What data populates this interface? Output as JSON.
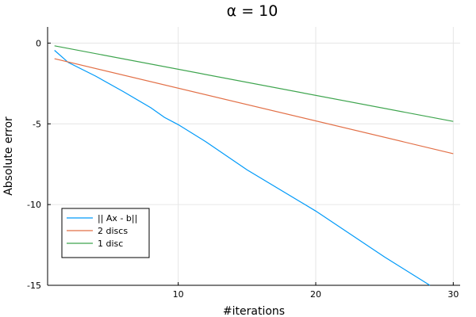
{
  "chart_data": {
    "type": "line",
    "title": "α =  10",
    "xlabel": "#iterations",
    "ylabel": "Absolute error",
    "xlim": [
      0.5,
      30.5
    ],
    "ylim": [
      -15,
      1
    ],
    "x_ticks": [
      10,
      20,
      30
    ],
    "y_ticks": [
      0,
      -5,
      -10,
      -15
    ],
    "x_tick_labels": [
      "10",
      "20",
      "30"
    ],
    "y_tick_labels": [
      "0",
      "-5",
      "-10",
      "-15"
    ],
    "grid": true,
    "legend_position": "bottom-left",
    "series": [
      {
        "name": "|| Ax - b||",
        "color": "#009af9",
        "x": [
          1,
          2,
          4,
          6,
          8,
          9,
          10,
          12,
          15,
          20,
          25,
          28.3
        ],
        "y": [
          -0.45,
          -1.2,
          -2.05,
          -3.0,
          -4.0,
          -4.6,
          -5.05,
          -6.1,
          -7.85,
          -10.4,
          -13.25,
          -15.0
        ]
      },
      {
        "name": "2 discs",
        "color": "#e26f46",
        "x": [
          1,
          30
        ],
        "y": [
          -0.97,
          -6.85
        ]
      },
      {
        "name": "1 disc",
        "color": "#3da44d",
        "x": [
          1,
          30
        ],
        "y": [
          -0.17,
          -4.85
        ]
      }
    ]
  }
}
